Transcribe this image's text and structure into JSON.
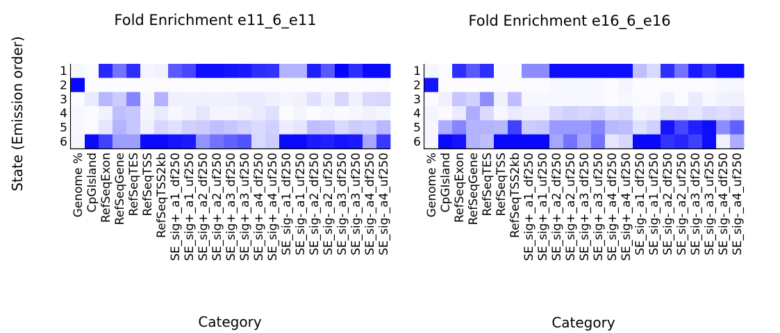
{
  "figure": {
    "ylabel": "State (Emission order)"
  },
  "chart_data": [
    {
      "type": "heatmap",
      "title": "Fold Enrichment e11_6_e11",
      "xlabel": "Category",
      "ylabel": "State (Emission order)",
      "color_low": "#ffffff",
      "color_high": "#0000ff",
      "value_range": [
        0,
        1
      ],
      "rows": [
        "1",
        "2",
        "3",
        "4",
        "5",
        "6"
      ],
      "columns": [
        "Genome %",
        "CpGIsland",
        "RefSeqExon",
        "RefSeqGene",
        "RefSeqTES",
        "RefSeqTSS",
        "RefSeqTSS2kb",
        "SE_sig+_a1_df250",
        "SE_sig+_a1_uf250",
        "SE_sig+_a2_df250",
        "SE_sig+_a2_uf250",
        "SE_sig+_a3_df250",
        "SE_sig+_a3_uf250",
        "SE_sig+_a4_df250",
        "SE_sig+_a4_uf250",
        "SE_sig-_a1_df250",
        "SE_sig-_a1_uf250",
        "SE_sig-_a2_df250",
        "SE_sig-_a2_uf250",
        "SE_sig-_a3_df250",
        "SE_sig-_a3_uf250",
        "SE_sig-_a4_df250",
        "SE_sig-_a4_uf250"
      ],
      "values": [
        [
          0.03,
          0.02,
          0.85,
          0.55,
          0.82,
          0.04,
          0.05,
          0.65,
          0.72,
          0.95,
          0.95,
          0.92,
          0.9,
          0.82,
          0.8,
          0.3,
          0.3,
          0.88,
          0.65,
          0.98,
          0.82,
          0.96,
          0.96
        ],
        [
          0.97,
          0.01,
          0.01,
          0.01,
          0.01,
          0.01,
          0.02,
          0.02,
          0.01,
          0.01,
          0.01,
          0.01,
          0.01,
          0.01,
          0.02,
          0.01,
          0.01,
          0.01,
          0.02,
          0.01,
          0.01,
          0.02,
          0.02
        ],
        [
          0.02,
          0.08,
          0.28,
          0.2,
          0.48,
          0.03,
          0.3,
          0.06,
          0.05,
          0.06,
          0.05,
          0.06,
          0.08,
          0.08,
          0.06,
          0.04,
          0.05,
          0.12,
          0.05,
          0.16,
          0.06,
          0.15,
          0.16
        ],
        [
          0.03,
          0.02,
          0.05,
          0.25,
          0.22,
          0.04,
          0.08,
          0.03,
          0.05,
          0.1,
          0.04,
          0.04,
          0.05,
          0.08,
          0.12,
          0.01,
          0.04,
          0.01,
          0.03,
          0.02,
          0.03,
          0.05,
          0.04
        ],
        [
          0.03,
          0.02,
          0.1,
          0.3,
          0.22,
          0.06,
          0.16,
          0.12,
          0.18,
          0.2,
          0.25,
          0.22,
          0.18,
          0.14,
          0.18,
          0.07,
          0.1,
          0.25,
          0.24,
          0.14,
          0.2,
          0.18,
          0.28
        ],
        [
          0.04,
          0.96,
          0.75,
          0.38,
          0.38,
          0.96,
          0.96,
          0.92,
          0.9,
          0.42,
          0.55,
          0.62,
          0.68,
          0.15,
          0.2,
          0.96,
          0.96,
          0.9,
          0.88,
          0.92,
          0.9,
          0.35,
          0.78
        ]
      ]
    },
    {
      "type": "heatmap",
      "title": "Fold Enrichment e16_6_e16",
      "xlabel": "Category",
      "ylabel": "",
      "color_low": "#ffffff",
      "color_high": "#0000ff",
      "value_range": [
        0,
        1
      ],
      "rows": [
        "1",
        "2",
        "3",
        "4",
        "5",
        "6"
      ],
      "columns": [
        "Genome %",
        "CpGIsland",
        "RefSeqExon",
        "RefSeqGene",
        "RefSeqTES",
        "RefSeqTSS",
        "RefSeqTSS2kb",
        "SE_sig+_a1_df250",
        "SE_sig+_a1_uf250",
        "SE_sig+_a2_df250",
        "SE_sig+_a2_uf250",
        "SE_sig+_a3_df250",
        "SE_sig+_a3_uf250",
        "SE_sig+_a4_df250",
        "SE_sig+_a4_uf250",
        "SE_sig-_a1_df250",
        "SE_sig-_a1_uf250",
        "SE_sig-_a2_df250",
        "SE_sig-_a2_uf250",
        "SE_sig-_a3_df250",
        "SE_sig-_a3_uf250",
        "SE_sig-_a4_df250",
        "SE_sig-_a4_uf250"
      ],
      "values": [
        [
          0.03,
          0.02,
          0.82,
          0.65,
          0.82,
          0.02,
          0.02,
          0.45,
          0.45,
          0.95,
          0.95,
          0.95,
          0.95,
          0.95,
          0.95,
          0.25,
          0.15,
          0.82,
          0.55,
          0.9,
          0.78,
          0.95,
          0.95
        ],
        [
          0.92,
          0.01,
          0.01,
          0.01,
          0.01,
          0.01,
          0.01,
          0.02,
          0.02,
          0.03,
          0.03,
          0.03,
          0.03,
          0.02,
          0.04,
          0.01,
          0.01,
          0.02,
          0.02,
          0.02,
          0.02,
          0.03,
          0.03
        ],
        [
          0.02,
          0.06,
          0.22,
          0.18,
          0.45,
          0.06,
          0.25,
          0.03,
          0.03,
          0.03,
          0.03,
          0.03,
          0.03,
          0.02,
          0.03,
          0.02,
          0.02,
          0.06,
          0.02,
          0.08,
          0.03,
          0.05,
          0.06
        ],
        [
          0.04,
          0.02,
          0.08,
          0.32,
          0.14,
          0.03,
          0.08,
          0.06,
          0.06,
          0.15,
          0.18,
          0.16,
          0.18,
          0.12,
          0.14,
          0.04,
          0.05,
          0.12,
          0.13,
          0.1,
          0.15,
          0.13,
          0.16
        ],
        [
          0.03,
          0.32,
          0.48,
          0.3,
          0.3,
          0.28,
          0.75,
          0.2,
          0.22,
          0.4,
          0.4,
          0.4,
          0.48,
          0.28,
          0.26,
          0.12,
          0.18,
          0.92,
          0.72,
          0.88,
          0.95,
          0.45,
          0.62
        ],
        [
          0.03,
          0.96,
          0.92,
          0.3,
          0.25,
          0.97,
          0.97,
          0.97,
          0.97,
          0.35,
          0.55,
          0.35,
          0.55,
          0.1,
          0.16,
          0.97,
          0.97,
          0.8,
          0.85,
          0.75,
          0.95,
          0.06,
          0.32
        ]
      ]
    }
  ]
}
